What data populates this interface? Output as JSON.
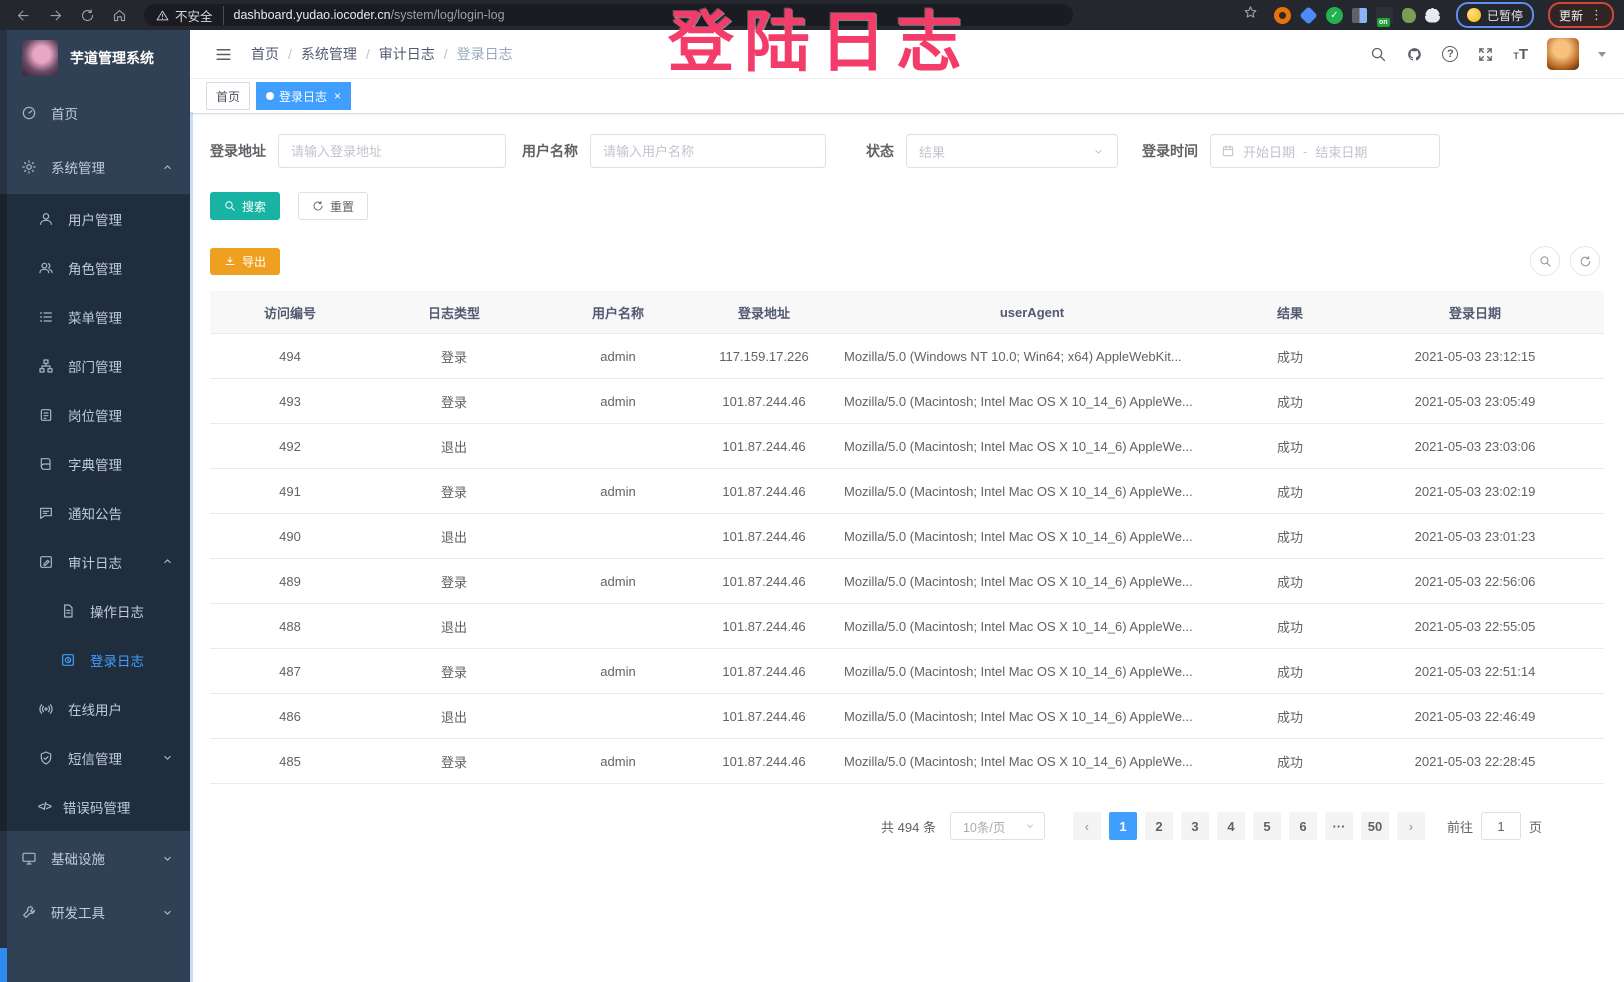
{
  "colors": {
    "accent": "#409eff",
    "search_teal": "#18b3a3",
    "export_orange": "#f0a020",
    "annotation_pink": "#f43c6a",
    "sidebar_bg": "#304156",
    "submenu_bg": "#1f2d3d"
  },
  "browser": {
    "warning_text": "不安全",
    "url_domain": "dashboard.yudao.iocoder.cn",
    "url_path": "/system/log/login-log",
    "ext_on_badge": "on",
    "paused_label": "已暂停",
    "update_label": "更新"
  },
  "annotation": {
    "text": "登陆日志"
  },
  "sidebar": {
    "logo_title": "芋道管理系统",
    "items": [
      {
        "label": "首页",
        "icon": "dashboard-icon"
      },
      {
        "label": "系统管理",
        "icon": "gear-icon"
      },
      {
        "label": "用户管理",
        "icon": "user-icon"
      },
      {
        "label": "角色管理",
        "icon": "users-icon"
      },
      {
        "label": "菜单管理",
        "icon": "menu-list-icon"
      },
      {
        "label": "部门管理",
        "icon": "org-tree-icon"
      },
      {
        "label": "岗位管理",
        "icon": "post-icon"
      },
      {
        "label": "字典管理",
        "icon": "dict-icon"
      },
      {
        "label": "通知公告",
        "icon": "notice-icon"
      },
      {
        "label": "审计日志",
        "icon": "audit-icon"
      },
      {
        "label": "操作日志",
        "icon": "doc-icon"
      },
      {
        "label": "登录日志",
        "icon": "login-log-icon",
        "active": true
      },
      {
        "label": "在线用户",
        "icon": "online-icon"
      },
      {
        "label": "短信管理",
        "icon": "shield-icon"
      },
      {
        "label": "错误码管理",
        "icon": "code-icon"
      },
      {
        "label": "基础设施",
        "icon": "monitor-icon"
      },
      {
        "label": "研发工具",
        "icon": "tool-icon"
      }
    ]
  },
  "header": {
    "breadcrumb": [
      "首页",
      "系统管理",
      "审计日志",
      "登录日志"
    ],
    "separator": "/"
  },
  "tags": {
    "home": "首页",
    "active": "登录日志",
    "close": "×"
  },
  "filters": {
    "login_address_label": "登录地址",
    "login_address_placeholder": "请输入登录地址",
    "username_label": "用户名称",
    "username_placeholder": "请输入用户名称",
    "status_label": "状态",
    "status_placeholder": "结果",
    "login_time_label": "登录时间",
    "date_start_placeholder": "开始日期",
    "date_separator": "-",
    "date_end_placeholder": "结束日期",
    "search_label": "搜索",
    "reset_label": "重置"
  },
  "toolbar": {
    "export_label": "导出"
  },
  "table": {
    "headers": [
      "访问编号",
      "日志类型",
      "用户名称",
      "登录地址",
      "userAgent",
      "结果",
      "登录日期"
    ],
    "rows": [
      [
        "494",
        "登录",
        "admin",
        "117.159.17.226",
        "Mozilla/5.0 (Windows NT 10.0; Win64; x64) AppleWebKit...",
        "成功",
        "2021-05-03 23:12:15"
      ],
      [
        "493",
        "登录",
        "admin",
        "101.87.244.46",
        "Mozilla/5.0 (Macintosh; Intel Mac OS X 10_14_6) AppleWe...",
        "成功",
        "2021-05-03 23:05:49"
      ],
      [
        "492",
        "退出",
        "",
        "101.87.244.46",
        "Mozilla/5.0 (Macintosh; Intel Mac OS X 10_14_6) AppleWe...",
        "成功",
        "2021-05-03 23:03:06"
      ],
      [
        "491",
        "登录",
        "admin",
        "101.87.244.46",
        "Mozilla/5.0 (Macintosh; Intel Mac OS X 10_14_6) AppleWe...",
        "成功",
        "2021-05-03 23:02:19"
      ],
      [
        "490",
        "退出",
        "",
        "101.87.244.46",
        "Mozilla/5.0 (Macintosh; Intel Mac OS X 10_14_6) AppleWe...",
        "成功",
        "2021-05-03 23:01:23"
      ],
      [
        "489",
        "登录",
        "admin",
        "101.87.244.46",
        "Mozilla/5.0 (Macintosh; Intel Mac OS X 10_14_6) AppleWe...",
        "成功",
        "2021-05-03 22:56:06"
      ],
      [
        "488",
        "退出",
        "",
        "101.87.244.46",
        "Mozilla/5.0 (Macintosh; Intel Mac OS X 10_14_6) AppleWe...",
        "成功",
        "2021-05-03 22:55:05"
      ],
      [
        "487",
        "登录",
        "admin",
        "101.87.244.46",
        "Mozilla/5.0 (Macintosh; Intel Mac OS X 10_14_6) AppleWe...",
        "成功",
        "2021-05-03 22:51:14"
      ],
      [
        "486",
        "退出",
        "",
        "101.87.244.46",
        "Mozilla/5.0 (Macintosh; Intel Mac OS X 10_14_6) AppleWe...",
        "成功",
        "2021-05-03 22:46:49"
      ],
      [
        "485",
        "登录",
        "admin",
        "101.87.244.46",
        "Mozilla/5.0 (Macintosh; Intel Mac OS X 10_14_6) AppleWe...",
        "成功",
        "2021-05-03 22:28:45"
      ]
    ]
  },
  "pagination": {
    "total_text": "共 494 条",
    "page_size": "10条/页",
    "prev": "‹",
    "next": "›",
    "pages": [
      "1",
      "2",
      "3",
      "4",
      "5",
      "6",
      "···",
      "50"
    ],
    "active_page": "1",
    "jump_prefix": "前往",
    "jump_value": "1",
    "jump_suffix": "页"
  }
}
